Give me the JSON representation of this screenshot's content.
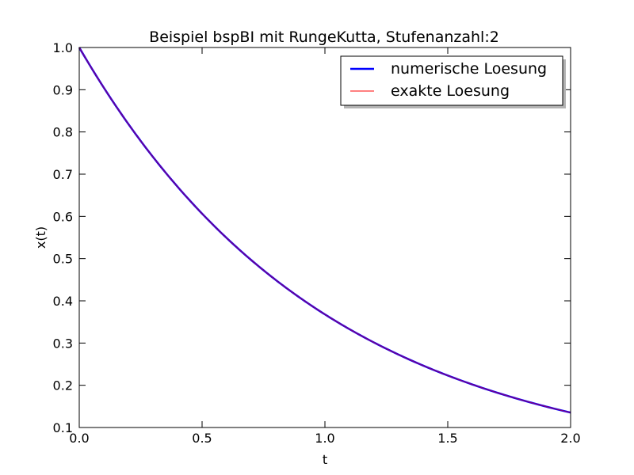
{
  "chart_data": {
    "type": "line",
    "title": "Beispiel bspBI mit RungeKutta, Stufenanzahl:2",
    "xlabel": "t",
    "ylabel": "x(t)",
    "xlim": [
      0.0,
      2.0
    ],
    "ylim": [
      0.1,
      1.0
    ],
    "x_ticks": [
      "0.0",
      "0.5",
      "1.0",
      "1.5",
      "2.0"
    ],
    "y_ticks": [
      "0.1",
      "0.2",
      "0.3",
      "0.4",
      "0.5",
      "0.6",
      "0.7",
      "0.8",
      "0.9",
      "1.0"
    ],
    "grid": false,
    "legend_position": "top-right",
    "x": [
      0.0,
      0.1,
      0.2,
      0.3,
      0.4,
      0.5,
      0.6,
      0.7,
      0.8,
      0.9,
      1.0,
      1.1,
      1.2,
      1.3,
      1.4,
      1.5,
      1.6,
      1.7,
      1.8,
      1.9,
      2.0
    ],
    "series": [
      {
        "name": "numerische Loesung",
        "color": "#0000ff",
        "values": [
          1.0,
          0.905,
          0.819,
          0.741,
          0.67,
          0.607,
          0.549,
          0.497,
          0.449,
          0.407,
          0.368,
          0.333,
          0.301,
          0.273,
          0.247,
          0.223,
          0.202,
          0.183,
          0.165,
          0.15,
          0.135
        ]
      },
      {
        "name": "exakte Loesung",
        "color": "#ff0000",
        "values": [
          1.0,
          0.905,
          0.819,
          0.741,
          0.67,
          0.607,
          0.549,
          0.497,
          0.449,
          0.407,
          0.368,
          0.333,
          0.301,
          0.273,
          0.247,
          0.223,
          0.202,
          0.183,
          0.165,
          0.15,
          0.135
        ]
      }
    ]
  }
}
